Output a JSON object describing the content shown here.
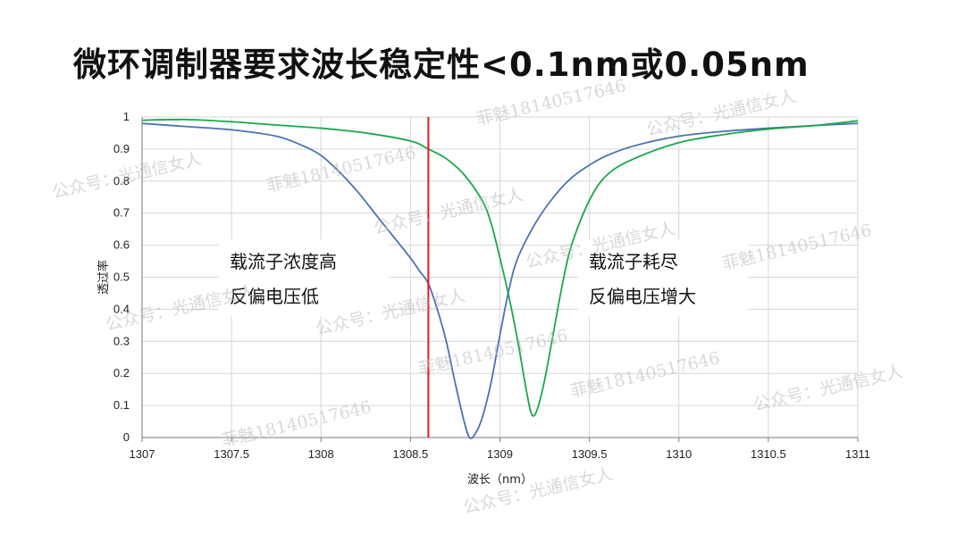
{
  "slide": {
    "title": "微环调制器要求波长稳定性<0.1nm或0.05nm"
  },
  "chart_data": {
    "type": "line",
    "xlabel": "波长（nm）",
    "ylabel": "透过率",
    "xlim": [
      1307,
      1311
    ],
    "ylim": [
      0,
      1
    ],
    "xticks": [
      "1307",
      "1307.5",
      "1308",
      "1308.5",
      "1309",
      "1309.5",
      "1310",
      "1310.5",
      "1311"
    ],
    "yticks": [
      "0",
      "0.1",
      "0.2",
      "0.3",
      "0.4",
      "0.5",
      "0.6",
      "0.7",
      "0.8",
      "0.9",
      "1"
    ],
    "grid": true,
    "series": [
      {
        "color": "#4a72b0",
        "points": [
          [
            1307,
            0.98
          ],
          [
            1307.25,
            0.97
          ],
          [
            1307.5,
            0.96
          ],
          [
            1307.75,
            0.94
          ],
          [
            1307.9,
            0.91
          ],
          [
            1308,
            0.88
          ],
          [
            1308.1,
            0.83
          ],
          [
            1308.2,
            0.77
          ],
          [
            1308.3,
            0.7
          ],
          [
            1308.4,
            0.63
          ],
          [
            1308.5,
            0.56
          ],
          [
            1308.55,
            0.52
          ],
          [
            1308.6,
            0.48
          ],
          [
            1308.65,
            0.4
          ],
          [
            1308.7,
            0.3
          ],
          [
            1308.75,
            0.17
          ],
          [
            1308.8,
            0.05
          ],
          [
            1308.83,
            0.0
          ],
          [
            1308.86,
            0.01
          ],
          [
            1308.9,
            0.06
          ],
          [
            1308.95,
            0.17
          ],
          [
            1309,
            0.32
          ],
          [
            1309.05,
            0.46
          ],
          [
            1309.1,
            0.56
          ],
          [
            1309.2,
            0.67
          ],
          [
            1309.3,
            0.75
          ],
          [
            1309.4,
            0.81
          ],
          [
            1309.5,
            0.85
          ],
          [
            1309.6,
            0.88
          ],
          [
            1309.75,
            0.91
          ],
          [
            1310,
            0.94
          ],
          [
            1310.25,
            0.955
          ],
          [
            1310.5,
            0.965
          ],
          [
            1310.75,
            0.973
          ],
          [
            1311,
            0.98
          ]
        ]
      },
      {
        "color": "#1aa84a",
        "points": [
          [
            1307,
            0.99
          ],
          [
            1307.25,
            0.992
          ],
          [
            1307.5,
            0.985
          ],
          [
            1307.75,
            0.975
          ],
          [
            1308,
            0.965
          ],
          [
            1308.25,
            0.95
          ],
          [
            1308.5,
            0.925
          ],
          [
            1308.6,
            0.9
          ],
          [
            1308.7,
            0.87
          ],
          [
            1308.8,
            0.82
          ],
          [
            1308.9,
            0.74
          ],
          [
            1308.95,
            0.67
          ],
          [
            1309,
            0.56
          ],
          [
            1309.05,
            0.44
          ],
          [
            1309.1,
            0.3
          ],
          [
            1309.15,
            0.14
          ],
          [
            1309.18,
            0.07
          ],
          [
            1309.21,
            0.09
          ],
          [
            1309.25,
            0.18
          ],
          [
            1309.3,
            0.33
          ],
          [
            1309.35,
            0.48
          ],
          [
            1309.4,
            0.6
          ],
          [
            1309.5,
            0.74
          ],
          [
            1309.6,
            0.82
          ],
          [
            1309.75,
            0.87
          ],
          [
            1310,
            0.92
          ],
          [
            1310.25,
            0.945
          ],
          [
            1310.5,
            0.962
          ],
          [
            1310.75,
            0.973
          ],
          [
            1311,
            0.988
          ]
        ]
      }
    ],
    "vline": {
      "x": 1308.6,
      "color": "#e8161b"
    },
    "annotations": [
      {
        "lines": [
          "载流子浓度高",
          "反偏电压低"
        ]
      },
      {
        "lines": [
          "载流子耗尽",
          "反偏电压增大"
        ]
      }
    ]
  },
  "watermarks": [
    "公众号：光通信女人",
    "菲魅18140517646",
    "公众号：光通信女人",
    "菲魅18140517646",
    "公众号：光通信女人",
    "菲魅18140517646",
    "公众号：光通信女人",
    "公众号：光通信女人",
    "菲魅18140517646",
    "公众号：光通信女人",
    "菲魅18140517646",
    "公众号：光通信女人",
    "菲魅18140517646",
    "公众号：光通信女人"
  ]
}
